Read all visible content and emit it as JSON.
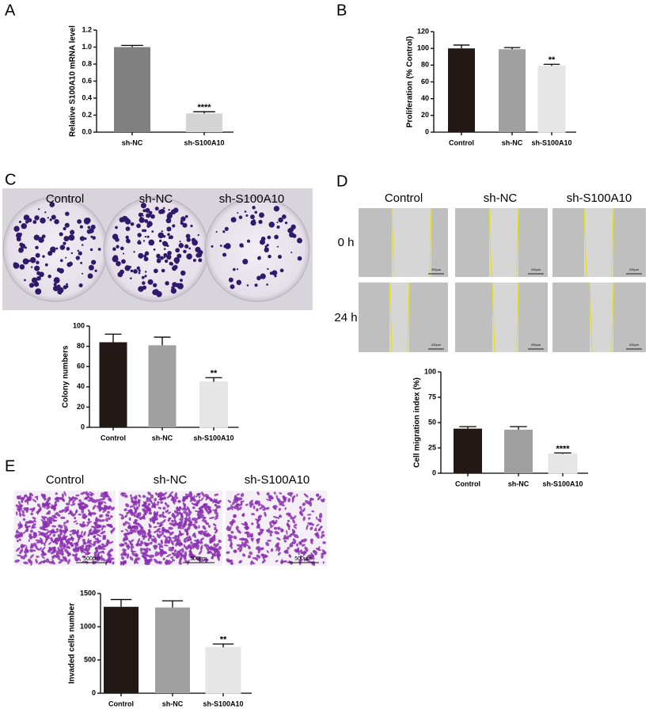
{
  "chart_data": [
    {
      "type": "bar",
      "panel": "A",
      "y_label": "Relative S100A10 mRNA level",
      "categories": [
        "sh-NC",
        "sh-S100A10"
      ],
      "values": [
        1.0,
        0.22
      ],
      "errors": [
        0.02,
        0.02
      ],
      "colors": [
        "#808080",
        "#d4d4d4"
      ],
      "ylim": [
        0,
        1.2
      ],
      "yticks": [
        {
          "value": 0,
          "label": "0.0"
        },
        0.2,
        0.4,
        0.6,
        0.8,
        {
          "value": 1,
          "label": "1.0"
        },
        1.2
      ],
      "annotations": [
        {
          "category": "sh-S100A10",
          "text": "****"
        }
      ]
    },
    {
      "type": "bar",
      "panel": "B",
      "y_label": "Proliferation (% Control)",
      "categories": [
        "Control",
        "sh-NC",
        "sh-S100A10"
      ],
      "values": [
        100,
        99,
        79
      ],
      "errors": [
        4,
        2,
        2
      ],
      "colors": [
        "#231816",
        "#a0a0a0",
        "#e6e6e6"
      ],
      "ylim": [
        0,
        120
      ],
      "yticks": [
        0,
        20,
        40,
        60,
        80,
        100,
        120
      ],
      "annotations": [
        {
          "category": "sh-S100A10",
          "text": "**"
        }
      ]
    },
    {
      "type": "bar",
      "y_label": "Colony numbers",
      "categories": [
        "Control",
        "sh-NC",
        "sh-S100A10"
      ],
      "values": [
        84,
        81,
        45
      ],
      "errors": [
        8,
        8,
        4
      ],
      "colors": [
        "#231816",
        "#a0a0a0",
        "#e6e6e6"
      ],
      "ylim": [
        0,
        100
      ],
      "yticks": [
        0,
        20,
        40,
        60,
        80,
        100
      ],
      "annotations": [
        {
          "category": "sh-S100A10",
          "text": "**"
        }
      ]
    },
    {
      "type": "bar",
      "y_label": "Cell migration index (%)",
      "categories": [
        "Control",
        "sh-NC",
        "sh-S100A10"
      ],
      "values": [
        44,
        43,
        19
      ],
      "errors": [
        2,
        3,
        1
      ],
      "colors": [
        "#231816",
        "#a0a0a0",
        "#e6e6e6"
      ],
      "ylim": [
        0,
        100
      ],
      "yticks": [
        0,
        25,
        50,
        75,
        100
      ],
      "annotations": [
        {
          "category": "sh-S100A10",
          "text": "****"
        }
      ]
    },
    {
      "type": "bar",
      "y_label": "Invaded cells number",
      "categories": [
        "Control",
        "sh-NC",
        "sh-S100A10"
      ],
      "values": [
        1300,
        1290,
        690
      ],
      "errors": [
        110,
        100,
        50
      ],
      "colors": [
        "#231816",
        "#a0a0a0",
        "#e6e6e6"
      ],
      "ylim": [
        0,
        1500
      ],
      "yticks": [
        0,
        500,
        1000,
        1500
      ],
      "annotations": [
        {
          "category": "sh-S100A10",
          "text": "**"
        }
      ]
    }
  ],
  "images": [
    {
      "panel": "C",
      "columns": [
        "Control",
        "sh-NC",
        "sh-S100A10"
      ]
    },
    {
      "panel": "D",
      "columns": [
        "Control",
        "sh-NC",
        "sh-S100A10"
      ],
      "rows": [
        "0 h",
        "24 h"
      ],
      "scale_label": "200μm"
    },
    {
      "panel": "E",
      "columns": [
        "Control",
        "sh-NC",
        "sh-S100A10"
      ],
      "scale_label": "500μm"
    }
  ]
}
